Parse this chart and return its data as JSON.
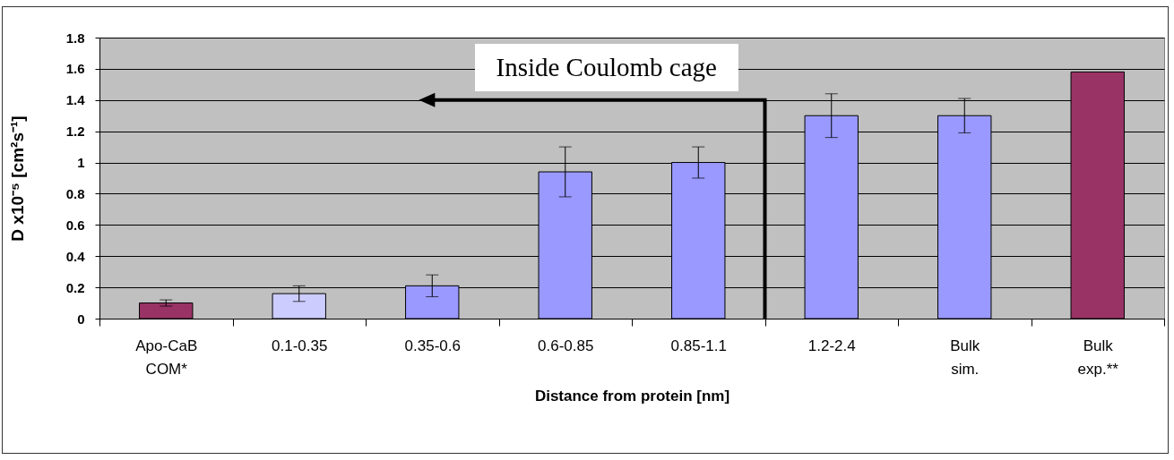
{
  "chart_data": {
    "type": "bar",
    "xlabel": "Distance from protein [nm]",
    "ylabel": "D x10⁻⁵ [cm²s⁻¹]",
    "categories": [
      "Apo-CaB COM*",
      "0.1-0.35",
      "0.35-0.6",
      "0.6-0.85",
      "0.85-1.1",
      "1.2-2.4",
      "Bulk sim.",
      "Bulk exp.**"
    ],
    "values": [
      0.1,
      0.16,
      0.21,
      0.94,
      1.0,
      1.3,
      1.3,
      1.58
    ],
    "errors": [
      0.02,
      0.05,
      0.07,
      0.16,
      0.1,
      0.14,
      0.11,
      null
    ],
    "colors": [
      "#993366",
      "#ccccff",
      "#9999ff",
      "#9999ff",
      "#9999ff",
      "#9999ff",
      "#9999ff",
      "#993366"
    ],
    "ylim": [
      0,
      1.8
    ],
    "yticks": [
      0,
      0.2,
      0.4,
      0.6,
      0.8,
      1,
      1.2,
      1.4,
      1.6,
      1.8
    ],
    "grid": "y",
    "annotations": [
      "Inside Coulomb cage"
    ]
  }
}
